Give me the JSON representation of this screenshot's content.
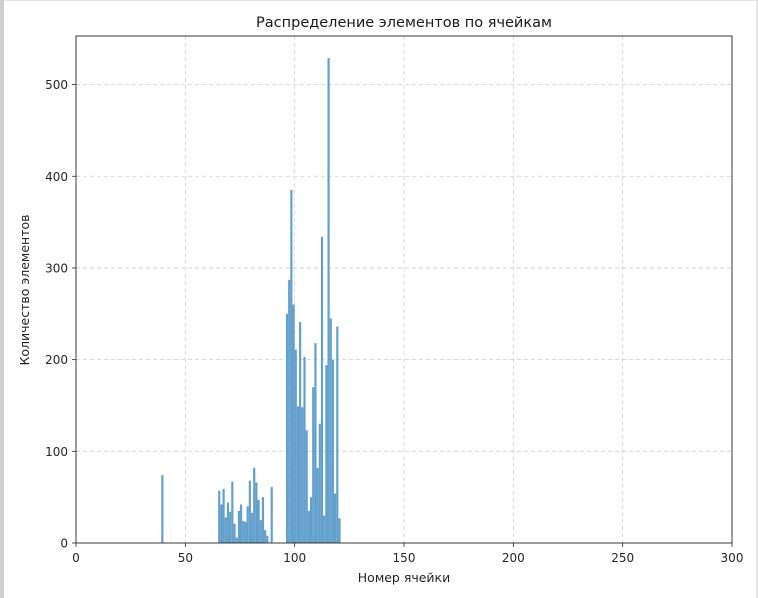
{
  "chart_data": {
    "type": "bar",
    "title": "Распределение элементов по ячейкам",
    "xlabel": "Номер ячейки",
    "ylabel": "Количество элементов",
    "xlim": [
      0,
      300
    ],
    "ylim": [
      0,
      553
    ],
    "xticks": [
      0,
      50,
      100,
      150,
      200,
      250,
      300
    ],
    "yticks": [
      0,
      100,
      200,
      300,
      400,
      500
    ],
    "grid": true,
    "bar_width": 1,
    "color": "#5b9bc9",
    "x": [
      39,
      65,
      66,
      67,
      68,
      69,
      70,
      71,
      72,
      73,
      74,
      75,
      76,
      77,
      78,
      79,
      80,
      81,
      82,
      83,
      84,
      85,
      86,
      87,
      88,
      89,
      90,
      91,
      96,
      97,
      98,
      99,
      100,
      101,
      102,
      103,
      104,
      105,
      106,
      107,
      108,
      109,
      110,
      111,
      112,
      113,
      114,
      115,
      116,
      117,
      118,
      119,
      120,
      121
    ],
    "values": [
      74,
      57,
      42,
      59,
      28,
      44,
      34,
      67,
      21,
      6,
      35,
      42,
      24,
      23,
      40,
      68,
      33,
      82,
      66,
      47,
      25,
      50,
      14,
      8,
      0,
      61,
      0,
      0,
      250,
      287,
      385,
      260,
      211,
      149,
      241,
      148,
      203,
      123,
      35,
      50,
      170,
      218,
      82,
      130,
      334,
      30,
      194,
      529,
      245,
      200,
      54,
      236,
      27,
      0
    ]
  }
}
